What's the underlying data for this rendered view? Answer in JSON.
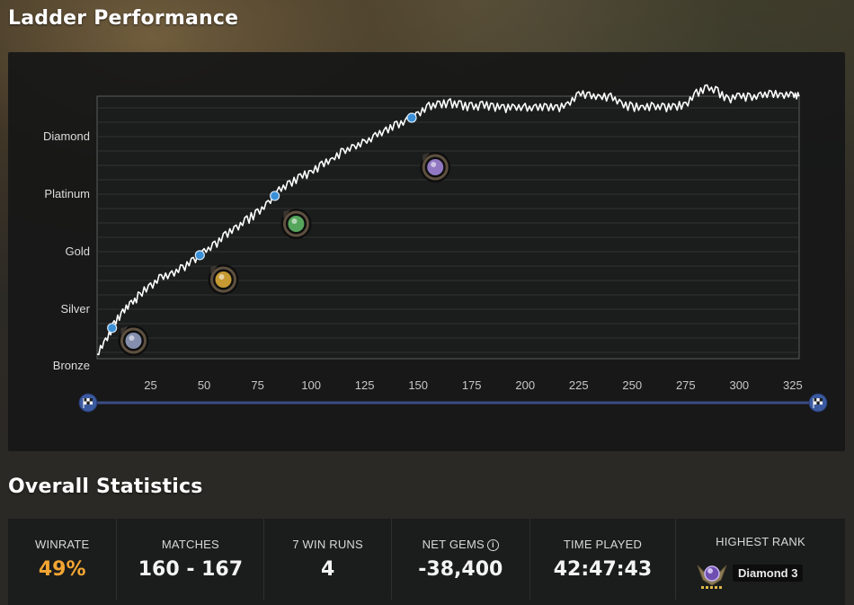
{
  "titles": {
    "ladder": "Ladder Performance",
    "stats": "Overall Statistics"
  },
  "colors": {
    "line": "#ffffff",
    "marker": "#3a8fd6",
    "slider": "#3b4d86",
    "winrate": "#f2a532"
  },
  "chart_data": {
    "type": "line",
    "title": "",
    "xlabel": "",
    "ylabel": "",
    "xlim": [
      0,
      328
    ],
    "x_ticks": [
      "25",
      "50",
      "75",
      "100",
      "125",
      "150",
      "175",
      "200",
      "225",
      "250",
      "275",
      "300",
      "325"
    ],
    "y_categories": [
      "Bronze",
      "Silver",
      "Gold",
      "Platinum",
      "Diamond"
    ],
    "grid": true,
    "series": [
      {
        "points": [
          [
            0,
            0.22
          ],
          [
            4,
            0.45
          ],
          [
            8,
            0.75
          ],
          [
            12,
            0.95
          ],
          [
            16,
            1.1
          ],
          [
            20,
            1.25
          ],
          [
            25,
            1.4
          ],
          [
            30,
            1.55
          ],
          [
            35,
            1.6
          ],
          [
            40,
            1.72
          ],
          [
            45,
            1.85
          ],
          [
            50,
            2.0
          ],
          [
            55,
            2.12
          ],
          [
            60,
            2.3
          ],
          [
            65,
            2.42
          ],
          [
            70,
            2.55
          ],
          [
            75,
            2.68
          ],
          [
            80,
            2.85
          ],
          [
            85,
            3.05
          ],
          [
            90,
            3.2
          ],
          [
            95,
            3.3
          ],
          [
            100,
            3.38
          ],
          [
            105,
            3.5
          ],
          [
            110,
            3.6
          ],
          [
            115,
            3.75
          ],
          [
            120,
            3.82
          ],
          [
            125,
            3.9
          ],
          [
            130,
            4.02
          ],
          [
            135,
            4.1
          ],
          [
            140,
            4.2
          ],
          [
            145,
            4.28
          ],
          [
            150,
            4.4
          ],
          [
            155,
            4.52
          ],
          [
            160,
            4.55
          ],
          [
            165,
            4.58
          ],
          [
            170,
            4.55
          ],
          [
            175,
            4.52
          ],
          [
            180,
            4.55
          ],
          [
            185,
            4.52
          ],
          [
            190,
            4.5
          ],
          [
            195,
            4.5
          ],
          [
            200,
            4.5
          ],
          [
            205,
            4.5
          ],
          [
            210,
            4.5
          ],
          [
            215,
            4.5
          ],
          [
            220,
            4.55
          ],
          [
            225,
            4.75
          ],
          [
            230,
            4.7
          ],
          [
            235,
            4.68
          ],
          [
            240,
            4.7
          ],
          [
            245,
            4.55
          ],
          [
            250,
            4.52
          ],
          [
            255,
            4.5
          ],
          [
            260,
            4.52
          ],
          [
            265,
            4.5
          ],
          [
            270,
            4.52
          ],
          [
            275,
            4.55
          ],
          [
            280,
            4.75
          ],
          [
            285,
            4.85
          ],
          [
            290,
            4.78
          ],
          [
            295,
            4.65
          ],
          [
            300,
            4.72
          ],
          [
            305,
            4.68
          ],
          [
            310,
            4.72
          ],
          [
            315,
            4.75
          ],
          [
            320,
            4.72
          ],
          [
            325,
            4.72
          ],
          [
            328,
            4.7
          ]
        ]
      }
    ],
    "rank_up_markers": [
      {
        "x": 7,
        "rank": "Silver"
      },
      {
        "x": 48,
        "rank": "Gold"
      },
      {
        "x": 83,
        "rank": "Platinum"
      },
      {
        "x": 147,
        "rank": "Diamond"
      }
    ],
    "rank_icons": [
      {
        "x": 17,
        "rank": "Bronze",
        "color": "#9aa6c9"
      },
      {
        "x": 59,
        "rank": "Gold",
        "color": "#e6b13a"
      },
      {
        "x": 93,
        "rank": "Platinum",
        "color": "#63c06a"
      },
      {
        "x": 158,
        "rank": "Diamond",
        "color": "#a98be3"
      }
    ]
  },
  "stats": {
    "winrate": {
      "label": "WINRATE",
      "value": "49%"
    },
    "matches": {
      "label": "MATCHES",
      "value": "160 - 167"
    },
    "seven_win_runs": {
      "label": "7 WIN RUNS",
      "value": "4"
    },
    "net_gems": {
      "label": "NET GEMS",
      "info_icon": "i",
      "value": "-38,400"
    },
    "time_played": {
      "label": "TIME PLAYED",
      "value": "42:47:43"
    },
    "highest_rank": {
      "label": "HIGHEST RANK",
      "value": "Diamond 3"
    }
  }
}
